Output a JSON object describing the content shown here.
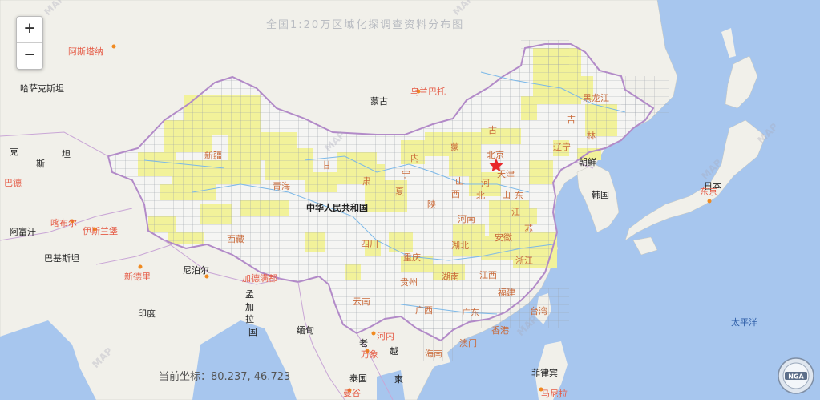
{
  "title": "全国1:20万区域化探调查资料分布图",
  "zoom": {
    "in_label": "+",
    "out_label": "−"
  },
  "coords": {
    "label": "当前坐标：",
    "value": "80.237, 46.723"
  },
  "logo_text": "NGA",
  "colors": {
    "sea": "#a7c6ee",
    "land": "#f1f0ea",
    "china": "#f5f5f3",
    "border_intl": "#b28ac8",
    "data_cell": "#f2f29a",
    "grid": "#9aa0aa",
    "province_label": "#c96a3a",
    "country_label": "#222222",
    "capital_star": "#e8262a",
    "city_label": "#e55a45"
  },
  "countries": [
    {
      "name": "哈萨克斯坦"
    },
    {
      "name": "蒙古"
    },
    {
      "name": "中华人民共和国"
    },
    {
      "name": "朝鲜"
    },
    {
      "name": "韩国"
    },
    {
      "name": "日本"
    },
    {
      "name": "阿富汗"
    },
    {
      "name": "巴基斯坦"
    },
    {
      "name": "尼泊尔"
    },
    {
      "name": "印度"
    },
    {
      "name": "孟"
    },
    {
      "name": "加"
    },
    {
      "name": "拉"
    },
    {
      "name": "国"
    },
    {
      "name": "缅甸"
    },
    {
      "name": "老"
    },
    {
      "name": "越"
    },
    {
      "name": "泰国"
    },
    {
      "name": "柬"
    },
    {
      "name": "菲律宾"
    },
    {
      "name": "太平洋"
    },
    {
      "name": "克"
    },
    {
      "name": "斯"
    },
    {
      "name": "坦"
    }
  ],
  "cities": [
    {
      "name": "阿斯塔纳"
    },
    {
      "name": "乌兰巴托"
    },
    {
      "name": "喀布尔"
    },
    {
      "name": "伊斯兰堡"
    },
    {
      "name": "新德里"
    },
    {
      "name": "加德满都"
    },
    {
      "name": "河内"
    },
    {
      "name": "万象"
    },
    {
      "name": "曼谷"
    },
    {
      "name": "马尼拉"
    },
    {
      "name": "东京"
    },
    {
      "name": "巴德"
    }
  ],
  "provinces": [
    {
      "name": "新疆"
    },
    {
      "name": "西藏"
    },
    {
      "name": "青海"
    },
    {
      "name": "甘"
    },
    {
      "name": "肃"
    },
    {
      "name": "宁"
    },
    {
      "name": "夏"
    },
    {
      "name": "内"
    },
    {
      "name": "蒙"
    },
    {
      "name": "古"
    },
    {
      "name": "黑龙江"
    },
    {
      "name": "吉"
    },
    {
      "name": "林"
    },
    {
      "name": "辽宁"
    },
    {
      "name": "北京"
    },
    {
      "name": "天津"
    },
    {
      "name": "山"
    },
    {
      "name": "西"
    },
    {
      "name": "河"
    },
    {
      "name": "北"
    },
    {
      "name": "陕"
    },
    {
      "name": "山"
    },
    {
      "name": "东"
    },
    {
      "name": "河南"
    },
    {
      "name": "江"
    },
    {
      "name": "苏"
    },
    {
      "name": "安徽"
    },
    {
      "name": "湖北"
    },
    {
      "name": "四川"
    },
    {
      "name": "重庆"
    },
    {
      "name": "浙江"
    },
    {
      "name": "湖南"
    },
    {
      "name": "江西"
    },
    {
      "name": "贵州"
    },
    {
      "name": "云南"
    },
    {
      "name": "广西"
    },
    {
      "name": "广东"
    },
    {
      "name": "福建"
    },
    {
      "name": "台湾"
    },
    {
      "name": "香港"
    },
    {
      "name": "澳门"
    },
    {
      "name": "海南"
    }
  ]
}
